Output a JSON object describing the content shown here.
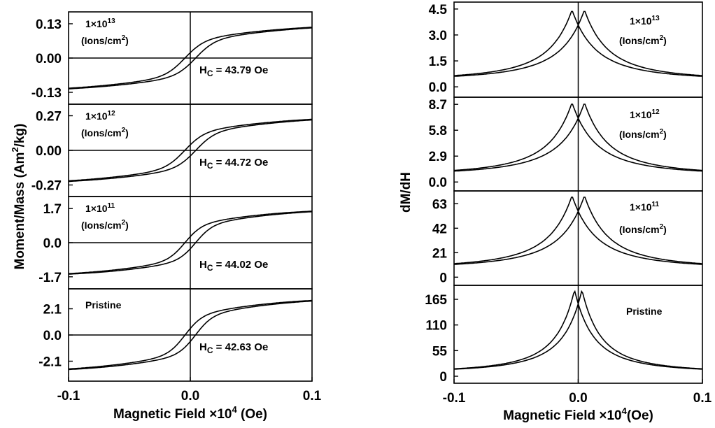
{
  "figure": {
    "left": {
      "ylabel_main": "Moment/Mass (Am",
      "ylabel_sup": "2",
      "ylabel_tail": "/kg)",
      "xlabel_main": "Magnetic Field ×10",
      "xlabel_sup": "4",
      "xlabel_tail": " (Oe)"
    },
    "right": {
      "ylabel": "dM/dH",
      "xlabel_main": "Magnetic Field ×10",
      "xlabel_sup": "4",
      "xlabel_tail": "(Oe)"
    },
    "x_ticks": [
      "-0.1",
      "0.0",
      "0.1"
    ]
  },
  "chart_data": [
    {
      "type": "line",
      "panel": "left-1",
      "label_line1": "1×10",
      "label_exp": "13",
      "label_line2": "(Ions/cm",
      "label_sup": "2",
      "label_line2_end": ")",
      "hc_label": "H",
      "hc_sub": "C",
      "hc_value": " = 43.79 Oe",
      "xlim": [
        -0.1,
        0.1
      ],
      "ylim": [
        -0.175,
        0.175
      ],
      "yticks": [
        0.13,
        0.0,
        -0.13
      ],
      "ytick_labels": [
        "0.13",
        "0.00",
        "-0.13"
      ],
      "saturation": 0.13,
      "coercive_norm": 0.0044,
      "width": 0.016
    },
    {
      "type": "line",
      "panel": "left-2",
      "label_line1": "1×10",
      "label_exp": "12",
      "label_line2": "(Ions/cm",
      "label_sup": "2",
      "label_line2_end": ")",
      "hc_label": "H",
      "hc_sub": "C",
      "hc_value": " = 44.72 Oe",
      "xlim": [
        -0.1,
        0.1
      ],
      "ylim": [
        -0.36,
        0.36
      ],
      "yticks": [
        0.27,
        0.0,
        -0.27
      ],
      "ytick_labels": [
        "0.27",
        "0.00",
        "-0.27"
      ],
      "saturation": 0.27,
      "coercive_norm": 0.0045,
      "width": 0.016
    },
    {
      "type": "line",
      "panel": "left-3",
      "label_line1": "1×10",
      "label_exp": "11",
      "label_line2": "(Ions/cm",
      "label_sup": "2",
      "label_line2_end": ")",
      "hc_label": "H",
      "hc_sub": "C",
      "hc_value": " = 44.02 Oe",
      "xlim": [
        -0.1,
        0.1
      ],
      "ylim": [
        -2.3,
        2.3
      ],
      "yticks": [
        1.7,
        0.0,
        -1.7
      ],
      "ytick_labels": [
        "1.7",
        "0.0",
        "-1.7"
      ],
      "saturation": 1.7,
      "coercive_norm": 0.0044,
      "width": 0.014
    },
    {
      "type": "line",
      "panel": "left-4",
      "label_line1": "Pristine",
      "hc_label": "H",
      "hc_sub": "C",
      "hc_value": " = 42.63 Oe",
      "xlim": [
        -0.1,
        0.1
      ],
      "ylim": [
        -3.7,
        3.7
      ],
      "yticks": [
        2.1,
        0.0,
        -2.1
      ],
      "ytick_labels": [
        "2.1",
        "0.0",
        "-2.1"
      ],
      "saturation": 3.0,
      "coercive_norm": 0.0043,
      "width": 0.014
    },
    {
      "type": "line",
      "panel": "right-1",
      "label_line1": "1×10",
      "label_exp": "13",
      "label_line2": "(Ions/cm",
      "label_sup": "2",
      "label_line2_end": ")",
      "xlim": [
        -0.1,
        0.1
      ],
      "ylim": [
        -0.6,
        4.9
      ],
      "yticks": [
        4.5,
        3.0,
        1.5,
        0.0
      ],
      "ytick_labels": [
        "4.5",
        "3.0",
        "1.5",
        "0.0"
      ],
      "peak": 4.45,
      "baseline": 0.35,
      "offset": 0.005,
      "width": 0.02
    },
    {
      "type": "line",
      "panel": "right-2",
      "label_line1": "1×10",
      "label_exp": "12",
      "label_line2": "(Ions/cm",
      "label_sup": "2",
      "label_line2_end": ")",
      "xlim": [
        -0.1,
        0.1
      ],
      "ylim": [
        -1.0,
        9.5
      ],
      "yticks": [
        8.7,
        5.8,
        2.9,
        0.0
      ],
      "ytick_labels": [
        "8.7",
        "5.8",
        "2.9",
        "0.0"
      ],
      "peak": 8.9,
      "baseline": 0.7,
      "offset": 0.005,
      "width": 0.02
    },
    {
      "type": "line",
      "panel": "right-3",
      "label_line1": "1×10",
      "label_exp": "11",
      "label_line2": "(Ions/cm",
      "label_sup": "2",
      "label_line2_end": ")",
      "xlim": [
        -0.1,
        0.1
      ],
      "ylim": [
        -7.0,
        74.0
      ],
      "yticks": [
        63,
        42,
        21,
        0
      ],
      "ytick_labels": [
        "63",
        "42",
        "21",
        "0"
      ],
      "peak": 70.0,
      "baseline": 7.0,
      "offset": 0.005,
      "width": 0.02
    },
    {
      "type": "line",
      "panel": "right-4",
      "label_line1": "Pristine",
      "xlim": [
        -0.1,
        0.1
      ],
      "ylim": [
        -15.0,
        195.0
      ],
      "yticks": [
        165,
        110,
        55,
        0
      ],
      "ytick_labels": [
        "165",
        "110",
        "55",
        "0"
      ],
      "peak": 185.0,
      "baseline": 7.0,
      "offset": 0.003,
      "width": 0.016
    }
  ]
}
